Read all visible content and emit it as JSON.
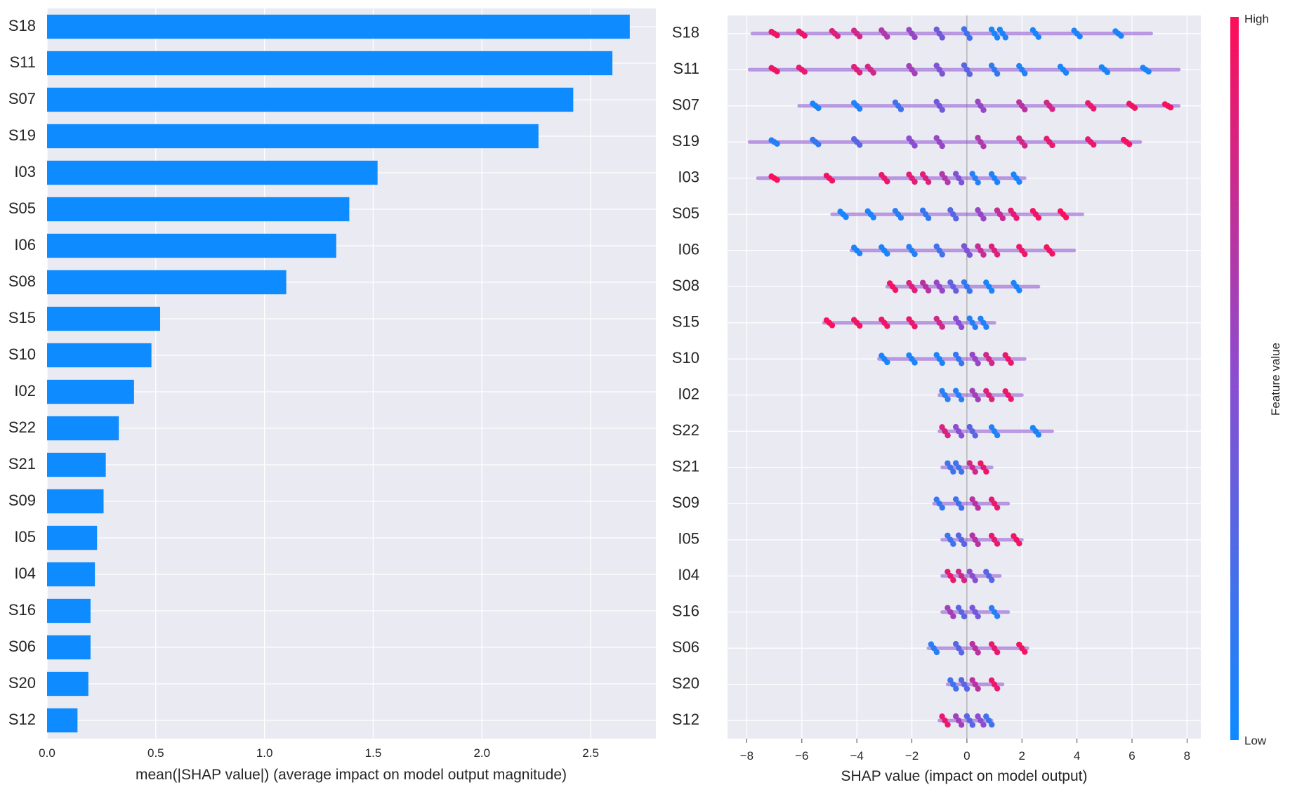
{
  "colors": {
    "bar": "#0d8bff",
    "low": "#0d8bff",
    "high": "#ff0d57",
    "panel_bg": "#eaeaf2",
    "grid": "#ffffff",
    "zero_line": "#999999"
  },
  "chart_data": [
    {
      "type": "bar",
      "orientation": "horizontal",
      "title": "",
      "xlabel": "mean(|SHAP value|) (average impact on model output magnitude)",
      "ylabel": "",
      "xlim": [
        0,
        2.8
      ],
      "xticks": [
        0.0,
        0.5,
        1.0,
        1.5,
        2.0,
        2.5
      ],
      "xtick_labels": [
        "0.0",
        "0.5",
        "1.0",
        "1.5",
        "2.0",
        "2.5"
      ],
      "categories": [
        "S18",
        "S11",
        "S07",
        "S19",
        "I03",
        "S05",
        "I06",
        "S08",
        "S15",
        "S10",
        "I02",
        "S22",
        "S21",
        "S09",
        "I05",
        "I04",
        "S16",
        "S06",
        "S20",
        "S12"
      ],
      "values": [
        2.68,
        2.6,
        2.42,
        2.26,
        1.52,
        1.39,
        1.33,
        1.1,
        0.52,
        0.48,
        0.4,
        0.33,
        0.27,
        0.26,
        0.23,
        0.22,
        0.2,
        0.2,
        0.19,
        0.14
      ]
    },
    {
      "type": "scatter",
      "subtype": "shap-beeswarm",
      "title": "",
      "xlabel": "SHAP value (impact on model output)",
      "ylabel": "",
      "xlim": [
        -8.7,
        8.5
      ],
      "xticks": [
        -8,
        -6,
        -4,
        -2,
        0,
        2,
        4,
        6,
        8
      ],
      "xtick_labels": [
        "−8",
        "−6",
        "−4",
        "−2",
        "0",
        "2",
        "4",
        "6",
        "8"
      ],
      "categories": [
        "S18",
        "S11",
        "S07",
        "S19",
        "I03",
        "S05",
        "I06",
        "S08",
        "S15",
        "S10",
        "I02",
        "S22",
        "S21",
        "S09",
        "I05",
        "I04",
        "S16",
        "S06",
        "S20",
        "S12"
      ],
      "series": [
        {
          "name": "S18",
          "range": [
            -7.8,
            6.7
          ],
          "points": [
            {
              "x": -7.0,
              "v": 0.95
            },
            {
              "x": -6.0,
              "v": 0.92
            },
            {
              "x": -4.8,
              "v": 0.85
            },
            {
              "x": -4.0,
              "v": 0.8
            },
            {
              "x": -3.0,
              "v": 0.65
            },
            {
              "x": -2.0,
              "v": 0.55
            },
            {
              "x": -1.0,
              "v": 0.4
            },
            {
              "x": 0.0,
              "v": 0.2
            },
            {
              "x": 1.0,
              "v": 0.05
            },
            {
              "x": 1.3,
              "v": 0.05
            },
            {
              "x": 2.5,
              "v": 0.05
            },
            {
              "x": 4.0,
              "v": 0.05
            },
            {
              "x": 5.5,
              "v": 0.05
            }
          ]
        },
        {
          "name": "S11",
          "range": [
            -7.9,
            7.7
          ],
          "points": [
            {
              "x": -7.0,
              "v": 0.95
            },
            {
              "x": -6.0,
              "v": 0.9
            },
            {
              "x": -4.0,
              "v": 0.85
            },
            {
              "x": -3.5,
              "v": 0.8
            },
            {
              "x": -2.0,
              "v": 0.6
            },
            {
              "x": -1.0,
              "v": 0.45
            },
            {
              "x": 0.0,
              "v": 0.3
            },
            {
              "x": 1.0,
              "v": 0.15
            },
            {
              "x": 2.0,
              "v": 0.08
            },
            {
              "x": 3.5,
              "v": 0.05
            },
            {
              "x": 5.0,
              "v": 0.05
            },
            {
              "x": 6.5,
              "v": 0.05
            }
          ]
        },
        {
          "name": "S07",
          "range": [
            -6.1,
            7.7
          ],
          "points": [
            {
              "x": -5.5,
              "v": 0.05
            },
            {
              "x": -4.0,
              "v": 0.08
            },
            {
              "x": -2.5,
              "v": 0.2
            },
            {
              "x": -1.0,
              "v": 0.4
            },
            {
              "x": 0.5,
              "v": 0.55
            },
            {
              "x": 2.0,
              "v": 0.7
            },
            {
              "x": 3.0,
              "v": 0.8
            },
            {
              "x": 4.5,
              "v": 0.9
            },
            {
              "x": 6.0,
              "v": 0.95
            },
            {
              "x": 7.3,
              "v": 0.98
            }
          ]
        },
        {
          "name": "S19",
          "range": [
            -7.9,
            6.3
          ],
          "points": [
            {
              "x": -7.0,
              "v": 0.1
            },
            {
              "x": -5.5,
              "v": 0.15
            },
            {
              "x": -4.0,
              "v": 0.3
            },
            {
              "x": -2.0,
              "v": 0.5
            },
            {
              "x": -1.0,
              "v": 0.55
            },
            {
              "x": 0.5,
              "v": 0.65
            },
            {
              "x": 2.0,
              "v": 0.8
            },
            {
              "x": 3.0,
              "v": 0.9
            },
            {
              "x": 4.5,
              "v": 0.9
            },
            {
              "x": 5.8,
              "v": 0.95
            }
          ]
        },
        {
          "name": "I03",
          "range": [
            -7.6,
            2.1
          ],
          "points": [
            {
              "x": -7.0,
              "v": 0.98
            },
            {
              "x": -5.0,
              "v": 0.95
            },
            {
              "x": -3.0,
              "v": 0.92
            },
            {
              "x": -2.0,
              "v": 0.88
            },
            {
              "x": -1.5,
              "v": 0.85
            },
            {
              "x": -0.8,
              "v": 0.65
            },
            {
              "x": -0.3,
              "v": 0.45
            },
            {
              "x": 0.3,
              "v": 0.1
            },
            {
              "x": 1.0,
              "v": 0.08
            },
            {
              "x": 1.8,
              "v": 0.05
            }
          ]
        },
        {
          "name": "S05",
          "range": [
            -4.9,
            4.2
          ],
          "points": [
            {
              "x": -4.5,
              "v": 0.05
            },
            {
              "x": -3.5,
              "v": 0.05
            },
            {
              "x": -2.5,
              "v": 0.1
            },
            {
              "x": -1.5,
              "v": 0.15
            },
            {
              "x": -0.5,
              "v": 0.3
            },
            {
              "x": 0.5,
              "v": 0.55
            },
            {
              "x": 1.2,
              "v": 0.75
            },
            {
              "x": 1.7,
              "v": 0.9
            },
            {
              "x": 2.5,
              "v": 0.95
            },
            {
              "x": 3.5,
              "v": 0.98
            }
          ]
        },
        {
          "name": "I06",
          "range": [
            -4.2,
            3.9
          ],
          "points": [
            {
              "x": -4.0,
              "v": 0.05
            },
            {
              "x": -3.0,
              "v": 0.05
            },
            {
              "x": -2.0,
              "v": 0.1
            },
            {
              "x": -1.0,
              "v": 0.2
            },
            {
              "x": 0.0,
              "v": 0.45
            },
            {
              "x": 0.5,
              "v": 0.75
            },
            {
              "x": 1.0,
              "v": 0.85
            },
            {
              "x": 2.0,
              "v": 0.92
            },
            {
              "x": 3.0,
              "v": 0.95
            }
          ]
        },
        {
          "name": "S08",
          "range": [
            -2.9,
            2.6
          ],
          "points": [
            {
              "x": -2.7,
              "v": 0.95
            },
            {
              "x": -2.0,
              "v": 0.85
            },
            {
              "x": -1.5,
              "v": 0.7
            },
            {
              "x": -1.0,
              "v": 0.55
            },
            {
              "x": -0.5,
              "v": 0.35
            },
            {
              "x": 0.0,
              "v": 0.15
            },
            {
              "x": 0.8,
              "v": 0.05
            },
            {
              "x": 1.8,
              "v": 0.05
            }
          ]
        },
        {
          "name": "S15",
          "range": [
            -5.2,
            1.0
          ],
          "points": [
            {
              "x": -5.0,
              "v": 0.98
            },
            {
              "x": -4.0,
              "v": 0.95
            },
            {
              "x": -3.0,
              "v": 0.92
            },
            {
              "x": -2.0,
              "v": 0.9
            },
            {
              "x": -1.0,
              "v": 0.8
            },
            {
              "x": -0.3,
              "v": 0.5
            },
            {
              "x": 0.2,
              "v": 0.1
            },
            {
              "x": 0.6,
              "v": 0.08
            }
          ]
        },
        {
          "name": "S10",
          "range": [
            -3.2,
            2.1
          ],
          "points": [
            {
              "x": -3.0,
              "v": 0.05
            },
            {
              "x": -2.0,
              "v": 0.05
            },
            {
              "x": -1.0,
              "v": 0.05
            },
            {
              "x": -0.3,
              "v": 0.15
            },
            {
              "x": 0.3,
              "v": 0.55
            },
            {
              "x": 0.8,
              "v": 0.8
            },
            {
              "x": 1.5,
              "v": 0.92
            }
          ]
        },
        {
          "name": "I02",
          "range": [
            -1.0,
            2.0
          ],
          "points": [
            {
              "x": -0.8,
              "v": 0.1
            },
            {
              "x": -0.3,
              "v": 0.1
            },
            {
              "x": 0.3,
              "v": 0.6
            },
            {
              "x": 0.8,
              "v": 0.85
            },
            {
              "x": 1.5,
              "v": 0.92
            }
          ]
        },
        {
          "name": "S22",
          "range": [
            -1.0,
            3.1
          ],
          "points": [
            {
              "x": -0.8,
              "v": 0.85
            },
            {
              "x": -0.3,
              "v": 0.5
            },
            {
              "x": 0.2,
              "v": 0.3
            },
            {
              "x": 1.0,
              "v": 0.08
            },
            {
              "x": 2.5,
              "v": 0.05
            }
          ]
        },
        {
          "name": "S21",
          "range": [
            -0.9,
            0.9
          ],
          "points": [
            {
              "x": -0.6,
              "v": 0.2
            },
            {
              "x": -0.3,
              "v": 0.2
            },
            {
              "x": 0.2,
              "v": 0.8
            },
            {
              "x": 0.6,
              "v": 0.92
            }
          ]
        },
        {
          "name": "S09",
          "range": [
            -1.2,
            1.5
          ],
          "points": [
            {
              "x": -1.0,
              "v": 0.15
            },
            {
              "x": -0.3,
              "v": 0.2
            },
            {
              "x": 0.3,
              "v": 0.7
            },
            {
              "x": 1.0,
              "v": 0.9
            }
          ]
        },
        {
          "name": "I05",
          "range": [
            -0.9,
            2.0
          ],
          "points": [
            {
              "x": -0.6,
              "v": 0.2
            },
            {
              "x": -0.2,
              "v": 0.3
            },
            {
              "x": 0.3,
              "v": 0.7
            },
            {
              "x": 1.0,
              "v": 0.9
            },
            {
              "x": 1.8,
              "v": 0.95
            }
          ]
        },
        {
          "name": "I04",
          "range": [
            -0.9,
            1.2
          ],
          "points": [
            {
              "x": -0.6,
              "v": 0.9
            },
            {
              "x": -0.2,
              "v": 0.8
            },
            {
              "x": 0.2,
              "v": 0.5
            },
            {
              "x": 0.8,
              "v": 0.3
            }
          ]
        },
        {
          "name": "S16",
          "range": [
            -0.9,
            1.5
          ],
          "points": [
            {
              "x": -0.6,
              "v": 0.6
            },
            {
              "x": -0.2,
              "v": 0.3
            },
            {
              "x": 0.3,
              "v": 0.4
            },
            {
              "x": 1.0,
              "v": 0.1
            }
          ]
        },
        {
          "name": "S06",
          "range": [
            -1.4,
            2.2
          ],
          "points": [
            {
              "x": -1.2,
              "v": 0.1
            },
            {
              "x": -0.3,
              "v": 0.3
            },
            {
              "x": 0.3,
              "v": 0.7
            },
            {
              "x": 1.0,
              "v": 0.9
            },
            {
              "x": 2.0,
              "v": 0.95
            }
          ]
        },
        {
          "name": "S20",
          "range": [
            -0.7,
            1.3
          ],
          "points": [
            {
              "x": -0.5,
              "v": 0.2
            },
            {
              "x": -0.1,
              "v": 0.3
            },
            {
              "x": 0.3,
              "v": 0.7
            },
            {
              "x": 1.0,
              "v": 0.9
            }
          ]
        },
        {
          "name": "S12",
          "range": [
            -1.0,
            0.9
          ],
          "points": [
            {
              "x": -0.8,
              "v": 0.9
            },
            {
              "x": -0.3,
              "v": 0.6
            },
            {
              "x": 0.1,
              "v": 0.3
            },
            {
              "x": 0.5,
              "v": 0.5
            },
            {
              "x": 0.8,
              "v": 0.2
            }
          ]
        }
      ]
    }
  ],
  "colorbar": {
    "label": "Feature value",
    "high_label": "High",
    "low_label": "Low"
  }
}
